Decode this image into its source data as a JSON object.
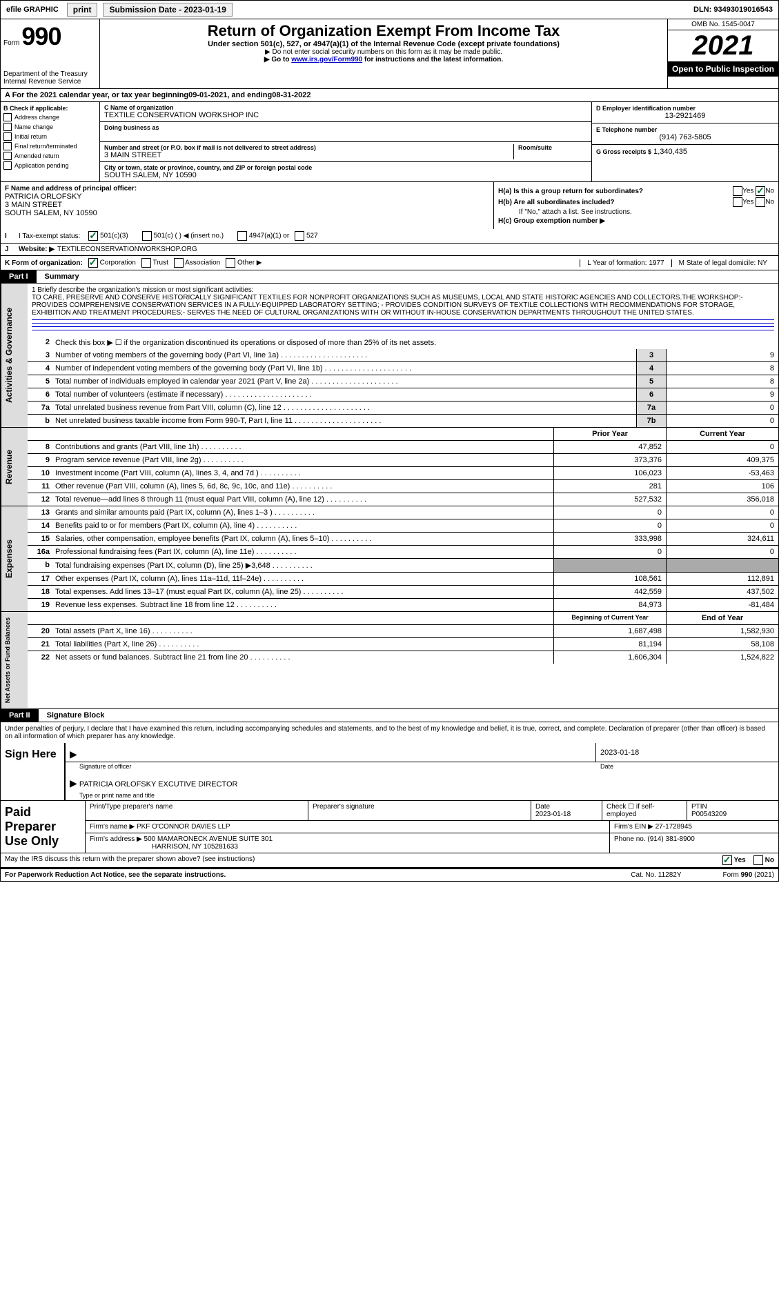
{
  "topbar": {
    "efile": "efile GRAPHIC",
    "print": "print",
    "subdate_label": "Submission Date - 2023-01-19",
    "dln": "DLN: 93493019016543"
  },
  "header": {
    "form_word": "Form",
    "form_num": "990",
    "title": "Return of Organization Exempt From Income Tax",
    "sub": "Under section 501(c), 527, or 4947(a)(1) of the Internal Revenue Code (except private foundations)",
    "line2": "▶ Do not enter social security numbers on this form as it may be made public.",
    "line3a": "▶ Go to ",
    "line3link": "www.irs.gov/Form990",
    "line3b": " for instructions and the latest information.",
    "dept": "Department of the Treasury",
    "irs": "Internal Revenue Service",
    "omb": "OMB No. 1545-0047",
    "year": "2021",
    "open": "Open to Public Inspection"
  },
  "a": {
    "text_a": "A For the 2021 calendar year, or tax year beginning ",
    "begin": "09-01-2021",
    "text_b": " , and ending ",
    "end": "08-31-2022"
  },
  "b": {
    "label": "B Check if applicable:",
    "items": [
      "Address change",
      "Name change",
      "Initial return",
      "Final return/terminated",
      "Amended return",
      "Application pending"
    ]
  },
  "c": {
    "name_label": "C Name of organization",
    "name": "TEXTILE CONSERVATION WORKSHOP INC",
    "dba_label": "Doing business as",
    "addr_label": "Number and street (or P.O. box if mail is not delivered to street address)",
    "room_label": "Room/suite",
    "addr": "3 MAIN STREET",
    "city_label": "City or town, state or province, country, and ZIP or foreign postal code",
    "city": "SOUTH SALEM, NY  10590"
  },
  "d": {
    "label": "D Employer identification number",
    "val": "13-2921469"
  },
  "e": {
    "label": "E Telephone number",
    "val": "(914) 763-5805"
  },
  "g": {
    "label": "G Gross receipts $",
    "val": "1,340,435"
  },
  "f": {
    "label": "F Name and address of principal officer:",
    "name": "PATRICIA ORLOFSKY",
    "addr1": "3 MAIN STREET",
    "addr2": "SOUTH SALEM, NY  10590"
  },
  "h": {
    "a": "H(a)  Is this a group return for subordinates?",
    "b": "H(b)  Are all subordinates included?",
    "note": "If \"No,\" attach a list. See instructions.",
    "c": "H(c)  Group exemption number ▶",
    "yes": "Yes",
    "no": "No"
  },
  "i": {
    "label": "I Tax-exempt status:",
    "opt1": "501(c)(3)",
    "opt2": "501(c) (   ) ◀ (insert no.)",
    "opt3": "4947(a)(1) or",
    "opt4": "527"
  },
  "j": {
    "label": "J",
    "text": "Website: ▶",
    "val": "TEXTILECONSERVATIONWORKSHOP.ORG"
  },
  "k": {
    "label": "K Form of organization:",
    "opts": [
      "Corporation",
      "Trust",
      "Association",
      "Other ▶"
    ],
    "l": "L Year of formation: 1977",
    "m": "M State of legal domicile: NY"
  },
  "part1": {
    "label": "Part I",
    "title": "Summary"
  },
  "mission": {
    "intro": "1   Briefly describe the organization's mission or most significant activities:",
    "text": "TO CARE, PRESERVE AND CONSERVE HISTORICALLY SIGNIFICANT TEXTILES FOR NONPROFIT ORGANIZATIONS SUCH AS MUSEUMS, LOCAL AND STATE HISTORIC AGENCIES AND COLLECTORS.THE WORKSHOP:- PROVIDES COMPREHENSIVE CONSERVATION SERVICES IN A FULLY-EQUIPPED LABORATORY SETTING; - PROVIDES CONDITION SURVEYS OF TEXTILE COLLECTIONS WITH RECOMMENDATIONS FOR STORAGE, EXHIBITION AND TREATMENT PROCEDURES;- SERVES THE NEED OF CULTURAL ORGANIZATIONS WITH OR WITHOUT IN-HOUSE CONSERVATION DEPARTMENTS THROUGHOUT THE UNITED STATES."
  },
  "ag": {
    "tab": "Activities & Governance",
    "l2": "Check this box ▶ ☐ if the organization discontinued its operations or disposed of more than 25% of its net assets.",
    "rows": [
      {
        "n": "3",
        "d": "Number of voting members of the governing body (Part VI, line 1a)",
        "box": "3",
        "v": "9"
      },
      {
        "n": "4",
        "d": "Number of independent voting members of the governing body (Part VI, line 1b)",
        "box": "4",
        "v": "8"
      },
      {
        "n": "5",
        "d": "Total number of individuals employed in calendar year 2021 (Part V, line 2a)",
        "box": "5",
        "v": "8"
      },
      {
        "n": "6",
        "d": "Total number of volunteers (estimate if necessary)",
        "box": "6",
        "v": "9"
      },
      {
        "n": "7a",
        "d": "Total unrelated business revenue from Part VIII, column (C), line 12",
        "box": "7a",
        "v": "0"
      },
      {
        "n": "b",
        "d": "Net unrelated business taxable income from Form 990-T, Part I, line 11",
        "box": "7b",
        "v": "0"
      }
    ]
  },
  "rev": {
    "tab": "Revenue",
    "h_prior": "Prior Year",
    "h_curr": "Current Year",
    "rows": [
      {
        "n": "8",
        "d": "Contributions and grants (Part VIII, line 1h)",
        "p": "47,852",
        "c": "0"
      },
      {
        "n": "9",
        "d": "Program service revenue (Part VIII, line 2g)",
        "p": "373,376",
        "c": "409,375"
      },
      {
        "n": "10",
        "d": "Investment income (Part VIII, column (A), lines 3, 4, and 7d )",
        "p": "106,023",
        "c": "-53,463"
      },
      {
        "n": "11",
        "d": "Other revenue (Part VIII, column (A), lines 5, 6d, 8c, 9c, 10c, and 11e)",
        "p": "281",
        "c": "106"
      },
      {
        "n": "12",
        "d": "Total revenue—add lines 8 through 11 (must equal Part VIII, column (A), line 12)",
        "p": "527,532",
        "c": "356,018"
      }
    ]
  },
  "exp": {
    "tab": "Expenses",
    "rows": [
      {
        "n": "13",
        "d": "Grants and similar amounts paid (Part IX, column (A), lines 1–3 )",
        "p": "0",
        "c": "0"
      },
      {
        "n": "14",
        "d": "Benefits paid to or for members (Part IX, column (A), line 4)",
        "p": "0",
        "c": "0"
      },
      {
        "n": "15",
        "d": "Salaries, other compensation, employee benefits (Part IX, column (A), lines 5–10)",
        "p": "333,998",
        "c": "324,611"
      },
      {
        "n": "16a",
        "d": "Professional fundraising fees (Part IX, column (A), line 11e)",
        "p": "0",
        "c": "0"
      },
      {
        "n": "b",
        "d": "Total fundraising expenses (Part IX, column (D), line 25) ▶3,648",
        "p": "",
        "c": "",
        "shaded": true
      },
      {
        "n": "17",
        "d": "Other expenses (Part IX, column (A), lines 11a–11d, 11f–24e)",
        "p": "108,561",
        "c": "112,891"
      },
      {
        "n": "18",
        "d": "Total expenses. Add lines 13–17 (must equal Part IX, column (A), line 25)",
        "p": "442,559",
        "c": "437,502"
      },
      {
        "n": "19",
        "d": "Revenue less expenses. Subtract line 18 from line 12",
        "p": "84,973",
        "c": "-81,484"
      }
    ]
  },
  "na": {
    "tab": "Net Assets or Fund Balances",
    "h_begin": "Beginning of Current Year",
    "h_end": "End of Year",
    "rows": [
      {
        "n": "20",
        "d": "Total assets (Part X, line 16)",
        "p": "1,687,498",
        "c": "1,582,930"
      },
      {
        "n": "21",
        "d": "Total liabilities (Part X, line 26)",
        "p": "81,194",
        "c": "58,108"
      },
      {
        "n": "22",
        "d": "Net assets or fund balances. Subtract line 21 from line 20",
        "p": "1,606,304",
        "c": "1,524,822"
      }
    ]
  },
  "part2": {
    "label": "Part II",
    "title": "Signature Block"
  },
  "sig": {
    "intro": "Under penalties of perjury, I declare that I have examined this return, including accompanying schedules and statements, and to the best of my knowledge and belief, it is true, correct, and complete. Declaration of preparer (other than officer) is based on all information of which preparer has any knowledge.",
    "sign_here": "Sign Here",
    "sig_label": "Signature of officer",
    "date_label": "Date",
    "date_val": "2023-01-18",
    "name": "PATRICIA ORLOFSKY  EXCUTIVE DIRECTOR",
    "name_label": "Type or print name and title"
  },
  "prep": {
    "title": "Paid Preparer Use Only",
    "h1": "Print/Type preparer's name",
    "h2": "Preparer's signature",
    "h3": "Date",
    "h3v": "2023-01-18",
    "h4": "Check ☐ if self-employed",
    "h5": "PTIN",
    "h5v": "P00543209",
    "firm_label": "Firm's name    ▶",
    "firm": "PKF O'CONNOR DAVIES LLP",
    "ein_label": "Firm's EIN ▶",
    "ein": "27-1728945",
    "addr_label": "Firm's address ▶",
    "addr1": "500 MAMARONECK AVENUE SUITE 301",
    "addr2": "HARRISON, NY  105281633",
    "phone_label": "Phone no.",
    "phone": "(914) 381-8900"
  },
  "footer": {
    "discuss": "May the IRS discuss this return with the preparer shown above? (see instructions)",
    "yes": "Yes",
    "no": "No",
    "pra": "For Paperwork Reduction Act Notice, see the separate instructions.",
    "cat": "Cat. No. 11282Y",
    "form": "Form 990 (2021)"
  }
}
